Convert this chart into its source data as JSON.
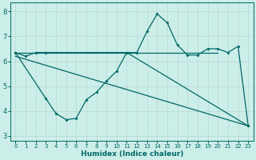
{
  "background_color": "#cceee8",
  "grid_color": "#b8d8d8",
  "line_color": "#006868",
  "xlabel": "Humidex (Indice chaleur)",
  "xlim": [
    -0.5,
    23.5
  ],
  "ylim": [
    2.8,
    8.35
  ],
  "yticks": [
    3,
    4,
    5,
    6,
    7,
    8
  ],
  "xticks": [
    0,
    1,
    2,
    3,
    4,
    5,
    6,
    7,
    8,
    9,
    10,
    11,
    12,
    13,
    14,
    15,
    16,
    17,
    18,
    19,
    20,
    21,
    22,
    23
  ],
  "series1_x": [
    0,
    1,
    2,
    3,
    11,
    12,
    13,
    14,
    15,
    16,
    17,
    18,
    19,
    20,
    21,
    22,
    23
  ],
  "series1_y": [
    6.35,
    6.2,
    6.35,
    6.35,
    6.35,
    6.35,
    7.2,
    7.9,
    7.55,
    6.65,
    6.25,
    6.25,
    6.5,
    6.5,
    6.35,
    6.6,
    3.4
  ],
  "series2_x": [
    0,
    3,
    4,
    5,
    6,
    7,
    8,
    9,
    10,
    11,
    23
  ],
  "series2_y": [
    6.35,
    4.5,
    3.9,
    3.65,
    3.7,
    4.45,
    4.75,
    5.2,
    5.6,
    6.35,
    3.4
  ],
  "trend1_x": [
    0,
    20
  ],
  "trend1_y": [
    6.35,
    6.35
  ],
  "trend2_x": [
    0,
    23
  ],
  "trend2_y": [
    6.2,
    3.4
  ],
  "figwidth": 3.2,
  "figheight": 2.0,
  "dpi": 100
}
